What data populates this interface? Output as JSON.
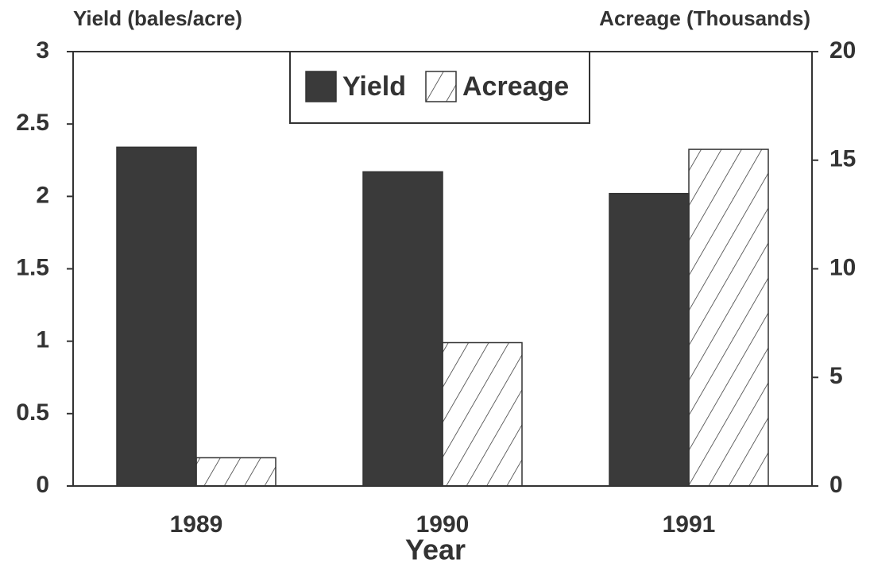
{
  "chart_data": {
    "type": "bar",
    "x_label": "Year",
    "y_label": "Yield (bales/acre)",
    "y2_label": "Acreage (Thousands)",
    "categories": [
      "1989",
      "1990",
      "1991"
    ],
    "series": [
      {
        "name": "Yield",
        "color": "#3a3a3a",
        "values": [
          2.34,
          2.17,
          2.02
        ]
      },
      {
        "name": "Acreage",
        "color": "#ffffff",
        "pattern": "hatch",
        "axis": "y2",
        "values": [
          1.3,
          6.6,
          15.5
        ]
      }
    ],
    "ylim": [
      0,
      3
    ],
    "yticks": [
      0,
      0.5,
      1,
      1.5,
      2,
      2.5,
      3
    ],
    "y2lim": [
      0,
      20
    ],
    "y2ticks": [
      0,
      5,
      10,
      15,
      20
    ],
    "legend": "top"
  }
}
